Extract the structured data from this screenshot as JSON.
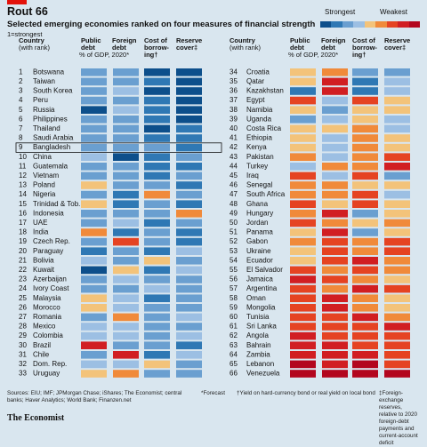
{
  "title": "Rout 66",
  "subtitle": "Selected emerging economies ranked on four measures of financial strength",
  "rank_note": "1=strongest",
  "legend": {
    "strongest": "Strongest",
    "weakest": "Weakest",
    "colors": [
      "#0d4f8b",
      "#2f78b4",
      "#6a9fd0",
      "#9cbfe3",
      "#f3c37a",
      "#f08a3a",
      "#e54322",
      "#d11e22",
      "#b3061e"
    ]
  },
  "headers": {
    "country": [
      "Country",
      "(with rank)"
    ],
    "public_debt": [
      "Public",
      "debt",
      "% of GDP, 2020*"
    ],
    "foreign_debt": [
      "Foreign",
      "debt"
    ],
    "cost_of_borrowing": [
      "Cost of",
      "borrow-",
      "ing†"
    ],
    "reserve_cover": [
      "Reserve",
      "cover‡"
    ]
  },
  "chart_data": {
    "type": "table",
    "value_scale": "1 = strongest (dark blue) … 9 = weakest (dark red)",
    "columns": [
      "Public debt",
      "Foreign debt",
      "Cost of borrowing",
      "Reserve cover"
    ],
    "highlighted_rank": 9,
    "rows": [
      {
        "rank": 1,
        "country": "Botswana",
        "values": [
          3,
          3,
          1,
          1
        ]
      },
      {
        "rank": 2,
        "country": "Taiwan",
        "values": [
          3,
          3,
          2,
          1
        ]
      },
      {
        "rank": 3,
        "country": "South Korea",
        "values": [
          3,
          4,
          1,
          1
        ]
      },
      {
        "rank": 4,
        "country": "Peru",
        "values": [
          3,
          3,
          2,
          1
        ]
      },
      {
        "rank": 5,
        "country": "Russia",
        "values": [
          1,
          4,
          2,
          1
        ]
      },
      {
        "rank": 6,
        "country": "Philippines",
        "values": [
          3,
          3,
          2,
          1
        ]
      },
      {
        "rank": 7,
        "country": "Thailand",
        "values": [
          3,
          3,
          1,
          2
        ]
      },
      {
        "rank": 8,
        "country": "Saudi Arabia",
        "values": [
          3,
          3,
          2,
          2
        ]
      },
      {
        "rank": 9,
        "country": "Bangladesh",
        "values": [
          3,
          3,
          3,
          2
        ]
      },
      {
        "rank": 10,
        "country": "China",
        "values": [
          4,
          1,
          2,
          3
        ]
      },
      {
        "rank": 11,
        "country": "Guatemala",
        "values": [
          3,
          3,
          2,
          2
        ]
      },
      {
        "rank": 12,
        "country": "Vietnam",
        "values": [
          3,
          3,
          2,
          3
        ]
      },
      {
        "rank": 13,
        "country": "Poland",
        "values": [
          5,
          3,
          3,
          2
        ]
      },
      {
        "rank": 14,
        "country": "Nigeria",
        "values": [
          3,
          2,
          6,
          3
        ]
      },
      {
        "rank": 15,
        "country": "Trinidad & Tob.",
        "values": [
          5,
          2,
          3,
          2
        ]
      },
      {
        "rank": 16,
        "country": "Indonesia",
        "values": [
          3,
          3,
          3,
          6
        ]
      },
      {
        "rank": 17,
        "country": "UAE",
        "values": [
          3,
          4,
          2,
          3
        ]
      },
      {
        "rank": 18,
        "country": "India",
        "values": [
          6,
          2,
          3,
          2
        ]
      },
      {
        "rank": 19,
        "country": "Czech Rep.",
        "values": [
          3,
          7,
          3,
          2
        ]
      },
      {
        "rank": 20,
        "country": "Paraguay",
        "values": [
          2,
          3,
          2,
          4
        ]
      },
      {
        "rank": 21,
        "country": "Bolivia",
        "values": [
          4,
          3,
          5,
          3
        ]
      },
      {
        "rank": 22,
        "country": "Kuwait",
        "values": [
          1,
          5,
          2,
          4
        ]
      },
      {
        "rank": 23,
        "country": "Azerbaijan",
        "values": [
          3,
          4,
          3,
          3
        ]
      },
      {
        "rank": 24,
        "country": "Ivory Coast",
        "values": [
          3,
          3,
          4,
          3
        ]
      },
      {
        "rank": 25,
        "country": "Malaysia",
        "values": [
          5,
          4,
          2,
          3
        ]
      },
      {
        "rank": 26,
        "country": "Morocco",
        "values": [
          5,
          4,
          3,
          3
        ]
      },
      {
        "rank": 27,
        "country": "Romania",
        "values": [
          3,
          6,
          3,
          4
        ]
      },
      {
        "rank": 28,
        "country": "Mexico",
        "values": [
          4,
          4,
          3,
          3
        ]
      },
      {
        "rank": 29,
        "country": "Colombia",
        "values": [
          4,
          4,
          3,
          4
        ]
      },
      {
        "rank": 30,
        "country": "Brazil",
        "values": [
          8,
          3,
          3,
          2
        ]
      },
      {
        "rank": 31,
        "country": "Chile",
        "values": [
          3,
          8,
          2,
          4
        ]
      },
      {
        "rank": 32,
        "country": "Dom. Rep.",
        "values": [
          4,
          4,
          5,
          3
        ]
      },
      {
        "rank": 33,
        "country": "Uruguay",
        "values": [
          5,
          6,
          3,
          3
        ]
      },
      {
        "rank": 34,
        "country": "Croatia",
        "values": [
          5,
          6,
          3,
          3
        ]
      },
      {
        "rank": 35,
        "country": "Qatar",
        "values": [
          5,
          8,
          2,
          4
        ]
      },
      {
        "rank": 36,
        "country": "Kazakhstan",
        "values": [
          2,
          8,
          2,
          4
        ]
      },
      {
        "rank": 37,
        "country": "Egypt",
        "values": [
          7,
          4,
          7,
          5
        ]
      },
      {
        "rank": 38,
        "country": "Namibia",
        "values": [
          5,
          3,
          5,
          5
        ]
      },
      {
        "rank": 39,
        "country": "Uganda",
        "values": [
          3,
          4,
          5,
          4
        ]
      },
      {
        "rank": 40,
        "country": "Costa Rica",
        "values": [
          5,
          5,
          6,
          4
        ]
      },
      {
        "rank": 41,
        "country": "Ethiopia",
        "values": [
          5,
          4,
          6,
          5
        ]
      },
      {
        "rank": 42,
        "country": "Kenya",
        "values": [
          5,
          4,
          6,
          5
        ]
      },
      {
        "rank": 43,
        "country": "Pakistan",
        "values": [
          6,
          4,
          6,
          7
        ]
      },
      {
        "rank": 44,
        "country": "Turkey",
        "values": [
          4,
          6,
          6,
          8
        ]
      },
      {
        "rank": 45,
        "country": "Iraq",
        "values": [
          7,
          4,
          7,
          3
        ]
      },
      {
        "rank": 46,
        "country": "Senegal",
        "values": [
          6,
          6,
          5,
          5
        ]
      },
      {
        "rank": 47,
        "country": "South Africa",
        "values": [
          6,
          6,
          7,
          4
        ]
      },
      {
        "rank": 48,
        "country": "Ghana",
        "values": [
          7,
          5,
          7,
          5
        ]
      },
      {
        "rank": 49,
        "country": "Hungary",
        "values": [
          6,
          8,
          3,
          5
        ]
      },
      {
        "rank": 50,
        "country": "Jordan",
        "values": [
          7,
          6,
          5,
          6
        ]
      },
      {
        "rank": 51,
        "country": "Panama",
        "values": [
          5,
          8,
          3,
          5
        ]
      },
      {
        "rank": 52,
        "country": "Gabon",
        "values": [
          6,
          7,
          6,
          7
        ]
      },
      {
        "rank": 53,
        "country": "Ukraine",
        "values": [
          5,
          7,
          6,
          7
        ]
      },
      {
        "rank": 54,
        "country": "Ecuador",
        "values": [
          5,
          7,
          8,
          6
        ]
      },
      {
        "rank": 55,
        "country": "El Salvador",
        "values": [
          7,
          6,
          7,
          6
        ]
      },
      {
        "rank": 56,
        "country": "Jamaica",
        "values": [
          8,
          7,
          6,
          5
        ]
      },
      {
        "rank": 57,
        "country": "Argentina",
        "values": [
          7,
          6,
          8,
          7
        ]
      },
      {
        "rank": 58,
        "country": "Oman",
        "values": [
          7,
          8,
          6,
          5
        ]
      },
      {
        "rank": 59,
        "country": "Mongolia",
        "values": [
          7,
          8,
          6,
          5
        ]
      },
      {
        "rank": 60,
        "country": "Tunisia",
        "values": [
          7,
          7,
          8,
          6
        ]
      },
      {
        "rank": 61,
        "country": "Sri Lanka",
        "values": [
          7,
          7,
          7,
          8
        ]
      },
      {
        "rank": 62,
        "country": "Angola",
        "values": [
          8,
          7,
          7,
          7
        ]
      },
      {
        "rank": 63,
        "country": "Bahrain",
        "values": [
          8,
          8,
          7,
          7
        ]
      },
      {
        "rank": 64,
        "country": "Zambia",
        "values": [
          8,
          8,
          8,
          7
        ]
      },
      {
        "rank": 65,
        "country": "Lebanon",
        "values": [
          9,
          8,
          9,
          7
        ]
      },
      {
        "rank": 66,
        "country": "Venezuela",
        "values": [
          9,
          9,
          9,
          9
        ]
      }
    ]
  },
  "sources": "Sources: EIU; IMF; JPMorgan Chase; iShares; The Economist; central banks; Haver Analytics; World Bank; Finanzen.net",
  "footnote_forecast": "*Forecast",
  "footnote_cost": "†Yield on hard-currency bond or real yield on local bond",
  "footnote_reserve": "‡Foreign-exchange reserves, relative to 2020 foreign-debt payments and current-account deficit",
  "brand": "The Economist"
}
